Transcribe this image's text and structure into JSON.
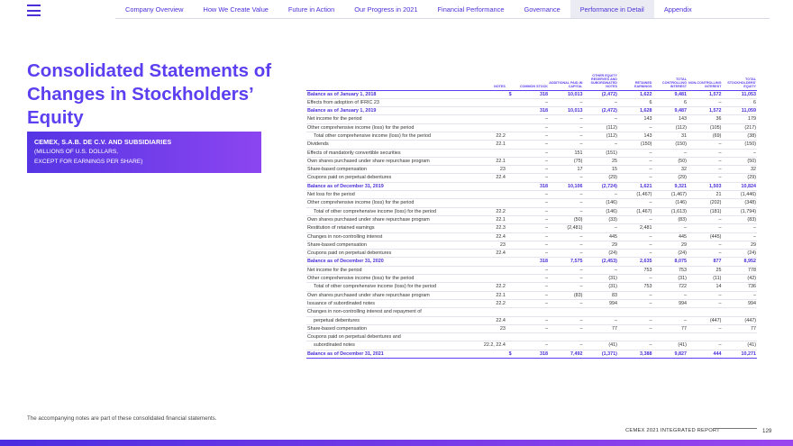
{
  "nav": {
    "items": [
      {
        "label": "Company Overview",
        "active": false
      },
      {
        "label": "How We Create Value",
        "active": false
      },
      {
        "label": "Future in Action",
        "active": false
      },
      {
        "label": "Our Progress in 2021",
        "active": false
      },
      {
        "label": "Financial Performance",
        "active": false
      },
      {
        "label": "Governance",
        "active": false
      },
      {
        "label": "Performance in Detail",
        "active": true
      },
      {
        "label": "Appendix",
        "active": false
      }
    ]
  },
  "page": {
    "title": "Consolidated Statements of Changes in Stockholders’ Equity",
    "company": "CEMEX, S.A.B. DE C.V. AND SUBSIDIARIES",
    "unit_line1": "(MILLIONS OF U.S. DOLLARS,",
    "unit_line2": "EXCEPT FOR EARNINGS PER SHARE)",
    "footnote": "The accompanying notes are part of these consolidated financial statements.",
    "report_name": "CEMEX 2021 INTEGRATED REPORT",
    "page_number": "129"
  },
  "table": {
    "headers": [
      "",
      "NOTES",
      "",
      "COMMON STOCK",
      "ADDITIONAL PAID-IN CAPITAL",
      "OTHER EQUITY RESERVES AND SUBORDINATED NOTES",
      "RETAINED EARNINGS",
      "TOTAL CONTROLLING INTEREST",
      "NON-CONTROLLING INTEREST",
      "TOTAL STOCKHOLDERS' EQUITY"
    ],
    "rows": [
      {
        "type": "balance first",
        "label": "Balance as of January 1, 2018",
        "notes": "",
        "dollar": "$",
        "values": [
          "318",
          "10,013",
          "(2,472)",
          "1,622",
          "9,481",
          "1,572",
          "11,053"
        ]
      },
      {
        "type": "",
        "label": "Effects from adoption of IFRIC 23",
        "notes": "",
        "dollar": "",
        "values": [
          "–",
          "–",
          "–",
          "6",
          "6",
          "–",
          "6"
        ]
      },
      {
        "type": "balance",
        "label": "Balance as of January 1, 2019",
        "notes": "",
        "dollar": "",
        "values": [
          "318",
          "10,013",
          "(2,472)",
          "1,628",
          "9,487",
          "1,572",
          "11,059"
        ]
      },
      {
        "type": "",
        "label": "Net income for the period",
        "notes": "",
        "dollar": "",
        "values": [
          "–",
          "–",
          "–",
          "143",
          "143",
          "36",
          "179"
        ]
      },
      {
        "type": "",
        "label": "Other comprehensive income (loss) for the period",
        "notes": "",
        "dollar": "",
        "values": [
          "–",
          "–",
          "(112)",
          "–",
          "(112)",
          "(105)",
          "(217)"
        ]
      },
      {
        "type": "subtotal",
        "label": "Total other comprehensive income (loss) for the period",
        "notes": "22.2",
        "dollar": "",
        "values": [
          "–",
          "–",
          "(112)",
          "143",
          "31",
          "(69)",
          "(38)"
        ]
      },
      {
        "type": "",
        "label": "Dividends",
        "notes": "22.1",
        "dollar": "",
        "values": [
          "–",
          "–",
          "–",
          "(150)",
          "(150)",
          "–",
          "(150)"
        ]
      },
      {
        "type": "",
        "label": "Effects of mandatorily convertible securities",
        "notes": "",
        "dollar": "",
        "values": [
          "–",
          "151",
          "(151)",
          "–",
          "–",
          "–",
          "–"
        ]
      },
      {
        "type": "",
        "label": "Own shares purchased under share repurchase program",
        "notes": "22.1",
        "dollar": "",
        "values": [
          "–",
          "(75)",
          "25",
          "–",
          "(50)",
          "–",
          "(50)"
        ]
      },
      {
        "type": "",
        "label": "Share-based compensation",
        "notes": "23",
        "dollar": "",
        "values": [
          "–",
          "17",
          "15",
          "–",
          "32",
          "–",
          "32"
        ]
      },
      {
        "type": "",
        "label": "Coupons paid on perpetual debentures",
        "notes": "22.4",
        "dollar": "",
        "values": [
          "–",
          "–",
          "(29)",
          "–",
          "(29)",
          "–",
          "(29)"
        ]
      },
      {
        "type": "balance",
        "label": "Balance as of December 31, 2019",
        "notes": "",
        "dollar": "",
        "values": [
          "318",
          "10,106",
          "(2,724)",
          "1,621",
          "9,321",
          "1,503",
          "10,824"
        ]
      },
      {
        "type": "",
        "label": "Net loss for the period",
        "notes": "",
        "dollar": "",
        "values": [
          "–",
          "–",
          "–",
          "(1,467)",
          "(1,467)",
          "21",
          "(1,446)"
        ]
      },
      {
        "type": "",
        "label": "Other comprehensive income (loss) for the period",
        "notes": "",
        "dollar": "",
        "values": [
          "–",
          "–",
          "(146)",
          "–",
          "(146)",
          "(202)",
          "(348)"
        ]
      },
      {
        "type": "subtotal",
        "label": "Total of other comprehensive income (loss) for the period",
        "notes": "22.2",
        "dollar": "",
        "values": [
          "–",
          "–",
          "(146)",
          "(1,467)",
          "(1,613)",
          "(181)",
          "(1,794)"
        ]
      },
      {
        "type": "",
        "label": "Own shares purchased under share repurchase program",
        "notes": "22.1",
        "dollar": "",
        "values": [
          "–",
          "(50)",
          "(33)",
          "–",
          "(83)",
          "–",
          "(83)"
        ]
      },
      {
        "type": "",
        "label": "Restitution of retained earnings",
        "notes": "22.3",
        "dollar": "",
        "values": [
          "–",
          "(2,481)",
          "–",
          "2,481",
          "–",
          "–",
          "–"
        ]
      },
      {
        "type": "",
        "label": "Changes in non-controlling interest",
        "notes": "22.4",
        "dollar": "",
        "values": [
          "–",
          "–",
          "445",
          "–",
          "445",
          "(445)",
          "–"
        ]
      },
      {
        "type": "",
        "label": "Share-based compensation",
        "notes": "23",
        "dollar": "",
        "values": [
          "–",
          "–",
          "29",
          "–",
          "29",
          "–",
          "29"
        ]
      },
      {
        "type": "",
        "label": "Coupons paid on perpetual debentures",
        "notes": "22.4",
        "dollar": "",
        "values": [
          "–",
          "–",
          "(24)",
          "–",
          "(24)",
          "–",
          "(24)"
        ]
      },
      {
        "type": "balance",
        "label": "Balance as of December 31, 2020",
        "notes": "",
        "dollar": "",
        "values": [
          "318",
          "7,575",
          "(2,453)",
          "2,635",
          "8,075",
          "877",
          "8,952"
        ]
      },
      {
        "type": "",
        "label": "Net income for the period",
        "notes": "",
        "dollar": "",
        "values": [
          "–",
          "–",
          "–",
          "753",
          "753",
          "25",
          "778"
        ]
      },
      {
        "type": "",
        "label": "Other comprehensive income (loss) for the period",
        "notes": "",
        "dollar": "",
        "values": [
          "–",
          "–",
          "(31)",
          "–",
          "(31)",
          "(11)",
          "(42)"
        ]
      },
      {
        "type": "subtotal",
        "label": "Total of other comprehensive income (loss) for the period",
        "notes": "22.2",
        "dollar": "",
        "values": [
          "–",
          "–",
          "(31)",
          "753",
          "722",
          "14",
          "736"
        ]
      },
      {
        "type": "",
        "label": "Own shares purchased under share repurchase program",
        "notes": "22.1",
        "dollar": "",
        "values": [
          "–",
          "(83)",
          "83",
          "–",
          "–",
          "–",
          "–"
        ]
      },
      {
        "type": "",
        "label": "Issuance of subordinated notes",
        "notes": "22.2",
        "dollar": "",
        "values": [
          "–",
          "–",
          "994",
          "–",
          "994",
          "–",
          "994"
        ]
      },
      {
        "type": "",
        "label": "Changes in non-controlling interest and repayment of",
        "notes": "",
        "dollar": "",
        "values": [
          "",
          "",
          "",
          "",
          "",
          "",
          ""
        ]
      },
      {
        "type": "cont",
        "label": "perpetual debentures",
        "notes": "22.4",
        "dollar": "",
        "values": [
          "–",
          "–",
          "–",
          "–",
          "–",
          "(447)",
          "(447)"
        ]
      },
      {
        "type": "",
        "label": "Share-based compensation",
        "notes": "23",
        "dollar": "",
        "values": [
          "–",
          "–",
          "77",
          "–",
          "77",
          "–",
          "77"
        ]
      },
      {
        "type": "",
        "label": "Coupons paid on perpetual debentures and",
        "notes": "",
        "dollar": "",
        "values": [
          "",
          "",
          "",
          "",
          "",
          "",
          ""
        ]
      },
      {
        "type": "cont",
        "label": "subordinated notes",
        "notes": "22.2, 22.4",
        "dollar": "",
        "values": [
          "–",
          "–",
          "(41)",
          "–",
          "(41)",
          "–",
          "(41)"
        ]
      },
      {
        "type": "balance last",
        "label": "Balance as of December 31, 2021",
        "notes": "",
        "dollar": "$",
        "values": [
          "318",
          "7,492",
          "(1,371)",
          "3,388",
          "9,827",
          "444",
          "10,271"
        ]
      }
    ]
  }
}
